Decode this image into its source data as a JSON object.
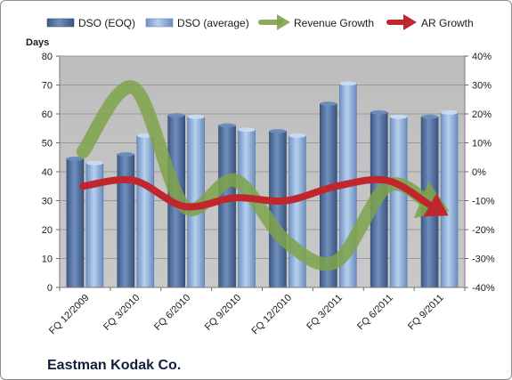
{
  "chart_data": {
    "type": "bar",
    "title": "Eastman Kodak Co.",
    "ylabel": "Days",
    "ylim": [
      0,
      80
    ],
    "y2lim": [
      -40,
      40
    ],
    "y2_unit": "%",
    "legend_position": "top",
    "grid": true,
    "categories": [
      "FQ 12/2009",
      "FQ 3/2010",
      "FQ 6/2010",
      "FQ 9/2010",
      "FQ 12/2010",
      "FQ 3/2011",
      "FQ 6/2011",
      "FQ 9/2011"
    ],
    "y_ticks": [
      "0",
      "10",
      "20",
      "30",
      "40",
      "50",
      "60",
      "70",
      "80"
    ],
    "y2_ticks": [
      "-40%",
      "-30%",
      "-20%",
      "-10%",
      "0%",
      "10%",
      "20%",
      "30%",
      "40%"
    ],
    "series": [
      {
        "name": "DSO (EOQ)",
        "type": "bar",
        "axis": "left",
        "color": "#4f6f9d",
        "values": [
          44.5,
          46,
          59.5,
          56,
          54,
          63.5,
          60.5,
          59
        ]
      },
      {
        "name": "DSO (average)",
        "type": "bar",
        "axis": "left",
        "color": "#8fb0da",
        "values": [
          43,
          52.5,
          59,
          54.5,
          52.5,
          70.5,
          59,
          60.5
        ]
      },
      {
        "name": "Revenue Growth",
        "type": "line",
        "axis": "right",
        "color": "#7ea34a",
        "values": [
          7,
          29,
          -12,
          -3,
          -24,
          -31,
          -5,
          -12
        ]
      },
      {
        "name": "AR Growth",
        "type": "line",
        "axis": "right",
        "color": "#c0272d",
        "values": [
          -5,
          -3,
          -12,
          -9,
          -10,
          -5,
          -3,
          -13
        ]
      }
    ]
  }
}
